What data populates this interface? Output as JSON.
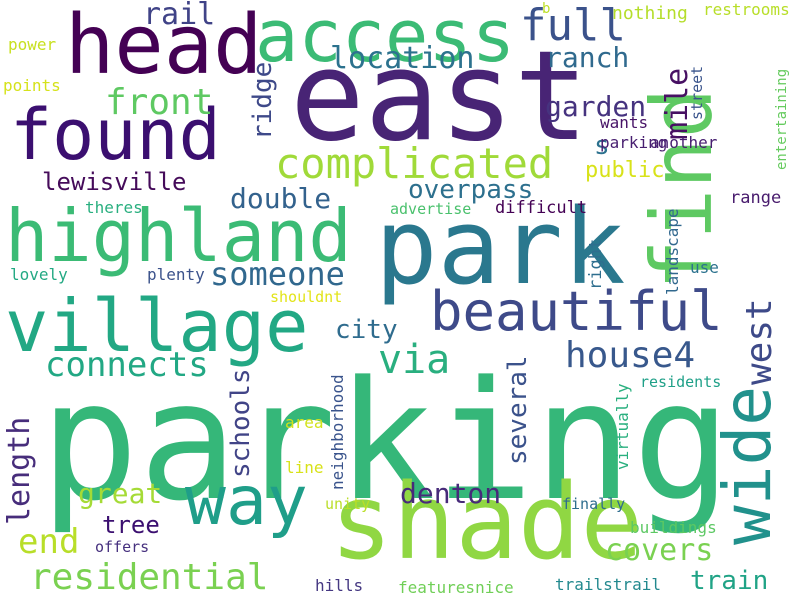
{
  "words": [
    {
      "text": "parking",
      "color": "#35b779"
    },
    {
      "text": "east",
      "color": "#482475"
    },
    {
      "text": "park",
      "color": "#2a788e"
    },
    {
      "text": "shade",
      "color": "#90d743"
    },
    {
      "text": "head",
      "color": "#440154"
    },
    {
      "text": "access",
      "color": "#3bbb75"
    },
    {
      "text": "found",
      "color": "#3b0f70"
    },
    {
      "text": "highland",
      "color": "#3bbb75"
    },
    {
      "text": "village",
      "color": "#22a884"
    },
    {
      "text": "find",
      "color": "#5ec962"
    },
    {
      "text": "wide",
      "color": "#21918c"
    },
    {
      "text": "way",
      "color": "#1f9e89"
    },
    {
      "text": "beautiful",
      "color": "#3e4a89"
    },
    {
      "text": "complicated",
      "color": "#a0da39"
    },
    {
      "text": "full",
      "color": "#3b528b"
    },
    {
      "text": "someone",
      "color": "#31688e"
    },
    {
      "text": "residential",
      "color": "#7ad151"
    },
    {
      "text": "connects",
      "color": "#22a884"
    },
    {
      "text": "front",
      "color": "#5ec962"
    },
    {
      "text": "house4",
      "color": "#38588c"
    },
    {
      "text": "west",
      "color": "#3e4a89"
    },
    {
      "text": "location",
      "color": "#2c728e"
    },
    {
      "text": "ranch",
      "color": "#306a8e"
    },
    {
      "text": "garden",
      "color": "#46337f"
    },
    {
      "text": "mile",
      "color": "#471063"
    },
    {
      "text": "rail",
      "color": "#404387"
    },
    {
      "text": "overpass",
      "color": "#2d708e"
    },
    {
      "text": "lewisville",
      "color": "#450b5a"
    },
    {
      "text": "double",
      "color": "#33628d"
    },
    {
      "text": "length",
      "color": "#472d7b"
    },
    {
      "text": "via",
      "color": "#29af7f"
    },
    {
      "text": "covers",
      "color": "#7ad151"
    },
    {
      "text": "end",
      "color": "#b8de29"
    },
    {
      "text": "great",
      "color": "#a5db36"
    },
    {
      "text": "denton",
      "color": "#472a7a"
    },
    {
      "text": "train",
      "color": "#20a386"
    },
    {
      "text": "tree",
      "color": "#3b0f70"
    },
    {
      "text": "city",
      "color": "#2f6c8e"
    },
    {
      "text": "schools",
      "color": "#414487"
    },
    {
      "text": "several",
      "color": "#3b528b"
    },
    {
      "text": "ridge",
      "color": "#3e4989"
    },
    {
      "text": "s",
      "color": "#2c718e"
    },
    {
      "text": "public",
      "color": "#d8e219"
    },
    {
      "text": "nothing",
      "color": "#b5de2b"
    },
    {
      "text": "restrooms",
      "color": "#b8de29"
    },
    {
      "text": "b",
      "color": "#bddf26"
    },
    {
      "text": "power",
      "color": "#c8e020"
    },
    {
      "text": "points",
      "color": "#d5e21a"
    },
    {
      "text": "street",
      "color": "#3a548c"
    },
    {
      "text": "another",
      "color": "#482071"
    },
    {
      "text": "parking",
      "color": "#481f70"
    },
    {
      "text": "wants",
      "color": "#481467"
    },
    {
      "text": "entertaining",
      "color": "#65cb5e"
    },
    {
      "text": "theres",
      "color": "#29af7f"
    },
    {
      "text": "advertise",
      "color": "#4ac16d"
    },
    {
      "text": "difficult",
      "color": "#440154"
    },
    {
      "text": "range",
      "color": "#481b6d"
    },
    {
      "text": "lovely",
      "color": "#23a983"
    },
    {
      "text": "plenty",
      "color": "#3b528b"
    },
    {
      "text": "shouldnt",
      "color": "#e2e418"
    },
    {
      "text": "right",
      "color": "#2e6e8e"
    },
    {
      "text": "landscape",
      "color": "#31688e"
    },
    {
      "text": "use",
      "color": "#2c728e"
    },
    {
      "text": "neighborhood",
      "color": "#3a548c"
    },
    {
      "text": "area",
      "color": "#d2e21b"
    },
    {
      "text": "line",
      "color": "#d8e219"
    },
    {
      "text": "virtually",
      "color": "#2ab07f"
    },
    {
      "text": "residents",
      "color": "#1fa088"
    },
    {
      "text": "unity",
      "color": "#bade28"
    },
    {
      "text": "finally",
      "color": "#2e6d8e"
    },
    {
      "text": "buildings",
      "color": "#5cc863"
    },
    {
      "text": "offers",
      "color": "#46307e"
    },
    {
      "text": "hills",
      "color": "#453882"
    },
    {
      "text": "featuresnice",
      "color": "#70cf57"
    },
    {
      "text": "trailstrail",
      "color": "#23898e"
    }
  ]
}
